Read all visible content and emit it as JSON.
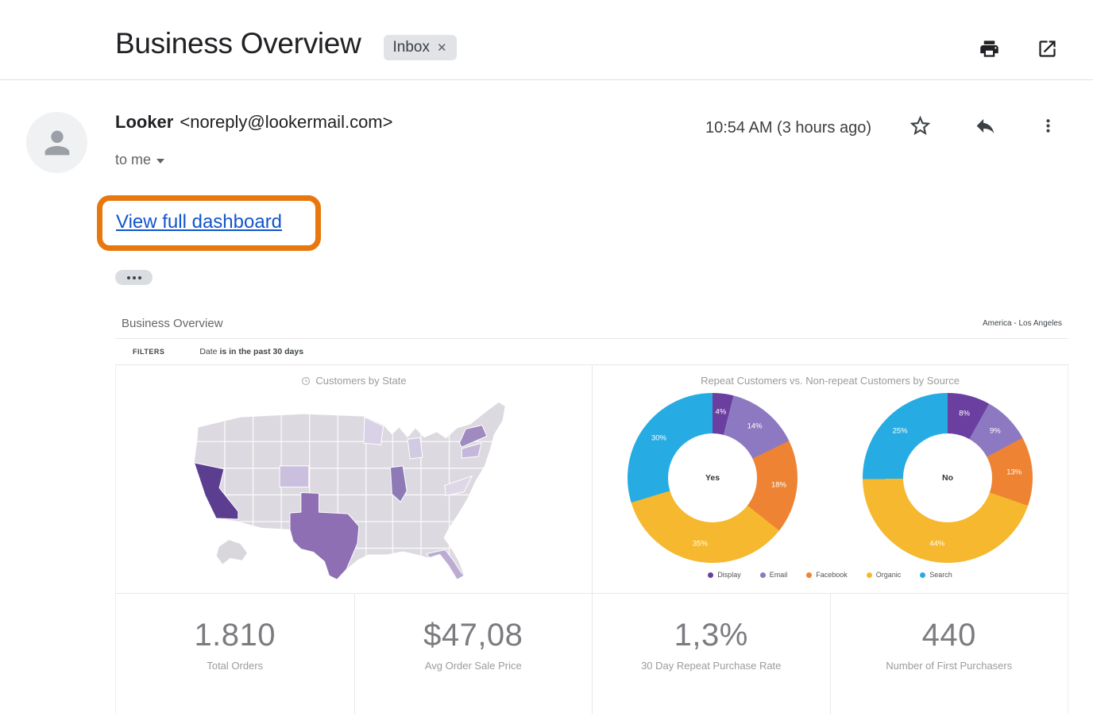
{
  "header": {
    "subject": "Business Overview",
    "inbox_chip": "Inbox",
    "inbox_chip_close": "✕"
  },
  "email": {
    "sender_name": "Looker",
    "sender_email": "<noreply@lookermail.com>",
    "recipient_line": "to me",
    "timestamp": "10:54 AM (3 hours ago)",
    "body_link": "View full dashboard"
  },
  "dashboard": {
    "title": "Business Overview",
    "timezone": "America - Los Angeles",
    "filters_label": "FILTERS",
    "filter_field": "Date",
    "filter_condition": "is in the past 30 days",
    "map_panel_title": "Customers by State",
    "donut_panel_title": "Repeat Customers vs. Non-repeat Customers by Source",
    "kpis": [
      {
        "value": "1.810",
        "label": "Total Orders"
      },
      {
        "value": "$47,08",
        "label": "Avg Order Sale Price"
      },
      {
        "value": "1,3%",
        "label": "30 Day Repeat Purchase Rate"
      },
      {
        "value": "440",
        "label": "Number of First Purchasers"
      }
    ]
  },
  "chart_data": [
    {
      "type": "heatmap",
      "subtype": "us-states-choropleth",
      "title": "Customers by State",
      "shading_note": "darker purple = more customers",
      "base_color": "#DCDAE0",
      "states_shaded": [
        {
          "state": "California",
          "intensity": "high",
          "color": "#5C3E91"
        },
        {
          "state": "Texas",
          "intensity": "medium-high",
          "color": "#8E6FB4"
        },
        {
          "state": "Illinois",
          "intensity": "medium",
          "color": "#8F7AB8"
        },
        {
          "state": "New York",
          "intensity": "medium",
          "color": "#9F8BC0"
        },
        {
          "state": "Florida",
          "intensity": "medium-low",
          "color": "#BCACD2"
        },
        {
          "state": "Pennsylvania",
          "intensity": "low",
          "color": "#C5B7D9"
        },
        {
          "state": "Colorado",
          "intensity": "low",
          "color": "#CBBFDE"
        },
        {
          "state": "Michigan",
          "intensity": "low",
          "color": "#D2C9E2"
        },
        {
          "state": "Minnesota",
          "intensity": "very-low",
          "color": "#D9D2E6"
        },
        {
          "state": "Virginia / North Carolina",
          "intensity": "very-low",
          "color": "#DDD7E8"
        }
      ]
    },
    {
      "type": "pie",
      "subtype": "donut-pair",
      "title": "Repeat Customers vs. Non-repeat Customers by Source",
      "sources": [
        "Display",
        "Email",
        "Facebook",
        "Organic",
        "Search"
      ],
      "colors": [
        "#6A3FA0",
        "#8D79C1",
        "#EE8433",
        "#F5B82E",
        "#26ACE3"
      ],
      "legend_position": "bottom",
      "donuts": [
        {
          "center_label": "Yes",
          "values": [
            4,
            14,
            18,
            35,
            30
          ],
          "labels": [
            "4%",
            "14%",
            "18%",
            "35%",
            "30%"
          ]
        },
        {
          "center_label": "No",
          "values": [
            8,
            9,
            13,
            44,
            25
          ],
          "labels": [
            "8%",
            "9%",
            "13%",
            "44%",
            "25%"
          ]
        }
      ]
    }
  ]
}
